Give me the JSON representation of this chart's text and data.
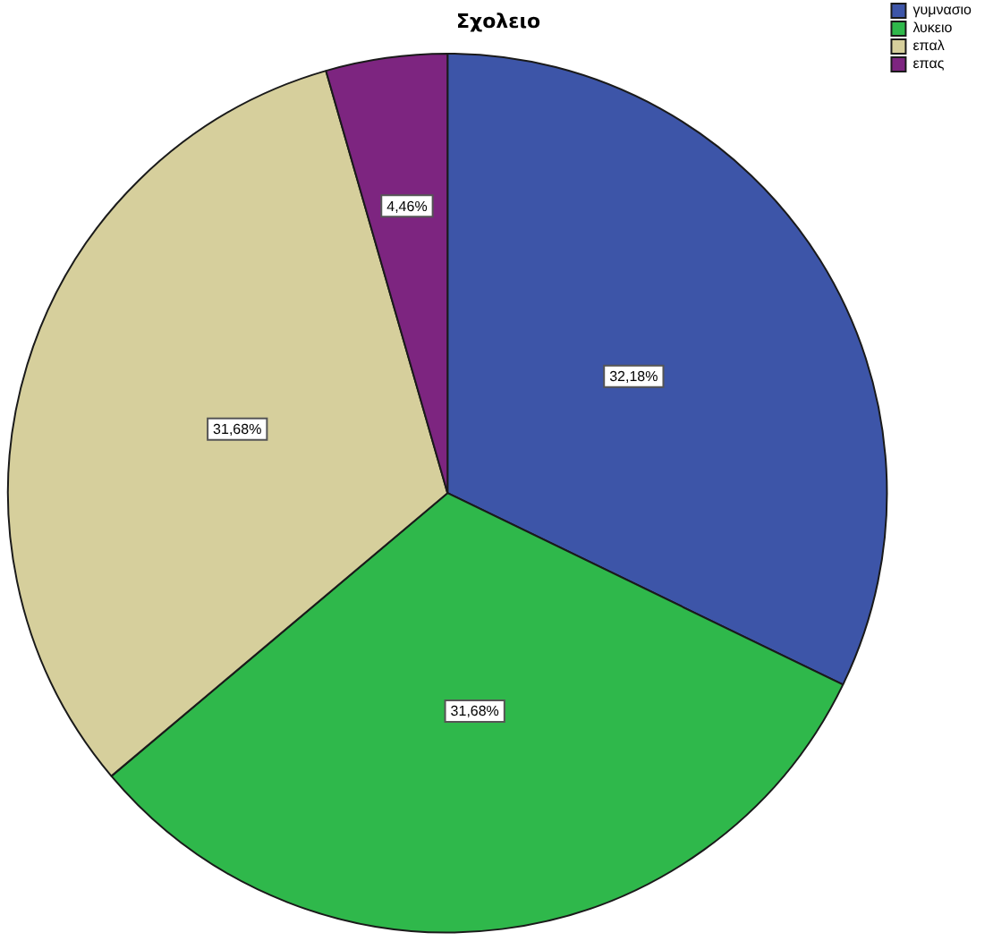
{
  "chart_data": {
    "type": "pie",
    "title": "Σχολειο",
    "categories": [
      "γυμνασιο",
      "λυκειο",
      "επαλ",
      "επας"
    ],
    "values": [
      32.18,
      31.68,
      31.68,
      4.46
    ],
    "colors": [
      "#3d55a8",
      "#2fb84b",
      "#d6cf9c",
      "#7d2580"
    ],
    "value_labels": [
      "32,18%",
      "31,68%",
      "31,68%",
      "4,46%"
    ],
    "legend": "top right"
  }
}
